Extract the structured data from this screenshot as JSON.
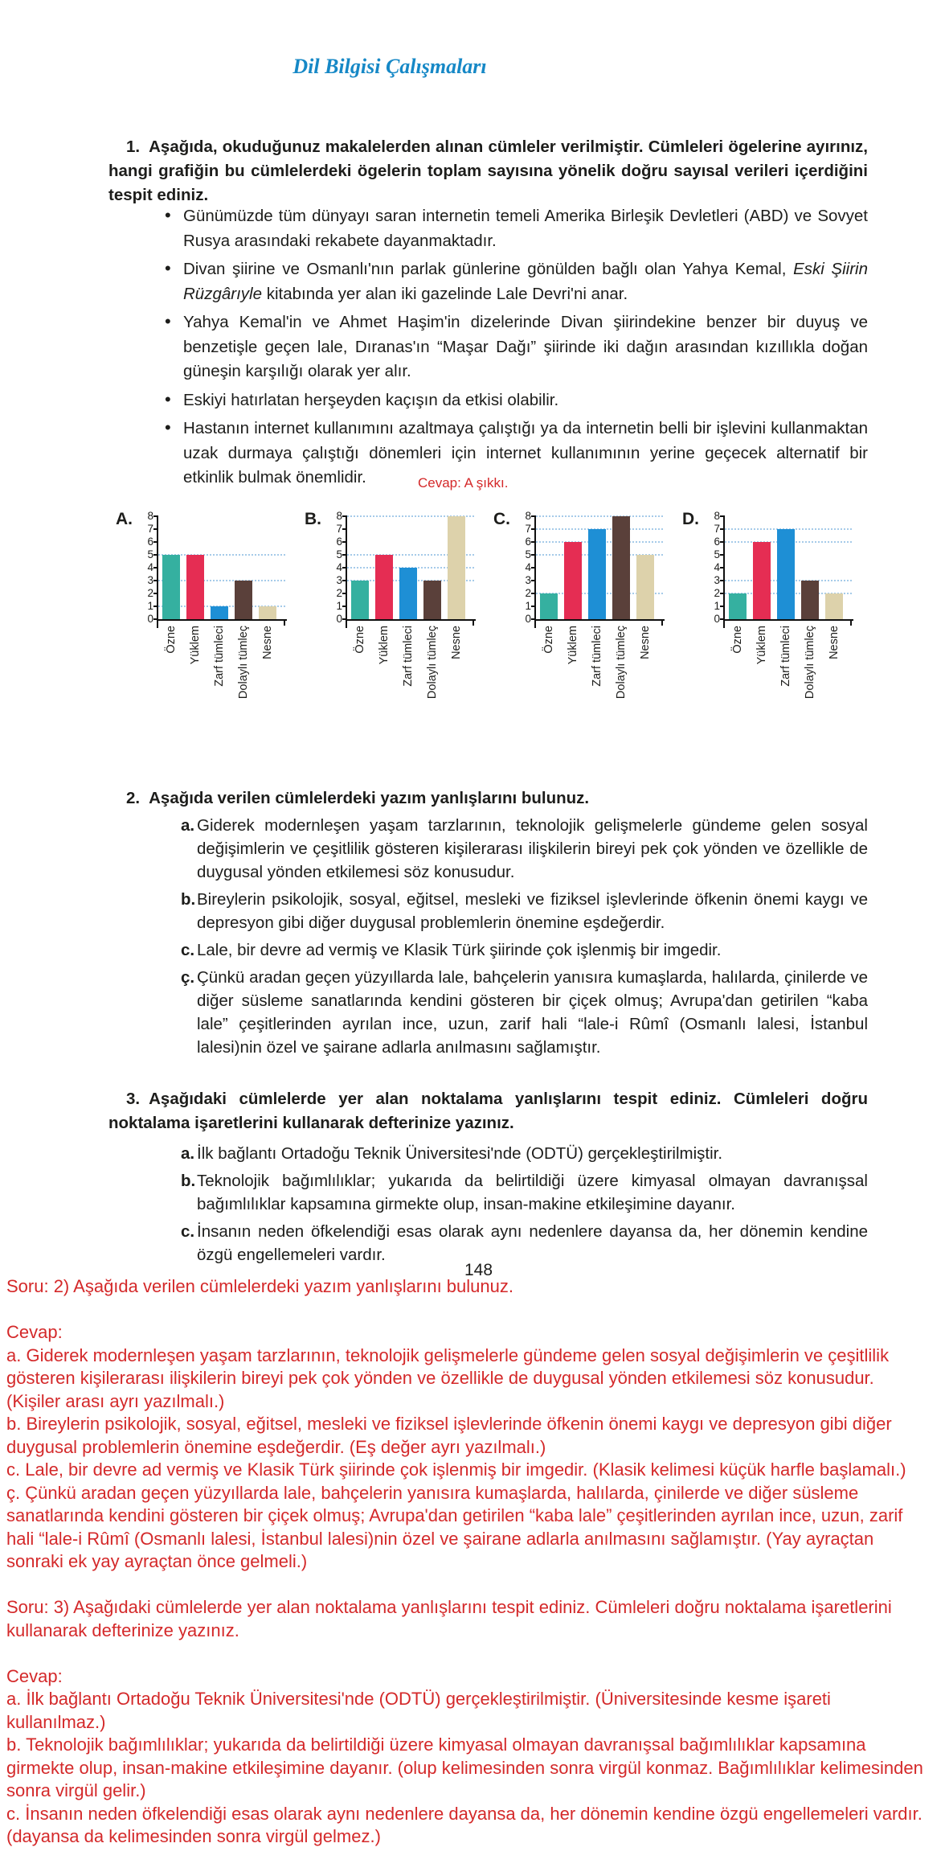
{
  "page": {
    "title": "Dil Bilgisi Çalışmaları",
    "title_color": "#1688c6",
    "page_number": "148"
  },
  "question1": {
    "number": "1.",
    "text": "Aşağıda, okuduğunuz makalelerden alınan cümleler verilmiştir. Cümleleri ögelerine ayırınız, hangi grafiğin bu cümlelerdeki ögelerin toplam sayısına yönelik doğru sayısal verileri içerdiğini tespit ediniz.",
    "bullets": [
      {
        "segments": [
          {
            "text": "Günümüzde tüm dünyayı saran internetin temeli Amerika Birleşik Devletleri (ABD) ve Sovyet Rusya arasındaki rekabete dayanmaktadır."
          }
        ]
      },
      {
        "segments": [
          {
            "text": "Divan şiirine ve Osmanlı'nın parlak günlerine gönülden bağlı olan Yahya Kemal, "
          },
          {
            "text": "Eski Şiirin Rüzgârıyle",
            "italic": true
          },
          {
            "text": " kitabında yer alan iki gazelinde Lale Devri'ni anar."
          }
        ]
      },
      {
        "segments": [
          {
            "text": "Yahya Kemal'in ve Ahmet Haşim'in dizelerinde Divan şiirindekine benzer bir duyuş ve benzetişle geçen lale, Dıranas'ın “Maşar Dağı” şiirinde iki dağın arasından kızıllıkla doğan güneşin karşılığı olarak yer alır."
          }
        ]
      },
      {
        "segments": [
          {
            "text": "Eskiyi hatırlatan herşeyden kaçışın da etkisi olabilir."
          }
        ]
      },
      {
        "segments": [
          {
            "text": "Hastanın internet kullanımını azaltmaya çalıştığı ya da internetin belli bir işlevini kullanmaktan uzak durmaya çalıştığı dönemleri için internet kullanımının yerine geçecek alternatif bir etkinlik bulmak önemlidir."
          }
        ]
      }
    ],
    "answer_note": "Cevap: A şıkkı."
  },
  "chart_style": {
    "bar_colors": [
      "#35b0a0",
      "#e52d53",
      "#1e8fd5",
      "#5a403a",
      "#ddd2ab"
    ],
    "grid_color": "#a6cbe9",
    "axis_color": "#101010",
    "gridlines": "horizontal dotted line at each distinct bar value",
    "x_labels_rotated": "90deg, read bottom to top"
  },
  "chart_data": [
    {
      "type": "bar",
      "label": "A.",
      "categories": [
        "Özne",
        "Yüklem",
        "Zarf tümleci",
        "Dolaylı tümleç",
        "Nesne"
      ],
      "values": [
        5,
        5,
        1,
        3,
        1
      ],
      "ylim": [
        0,
        8
      ],
      "yticks": [
        0,
        1,
        2,
        3,
        4,
        5,
        6,
        7,
        8
      ]
    },
    {
      "type": "bar",
      "label": "B.",
      "categories": [
        "Özne",
        "Yüklem",
        "Zarf tümleci",
        "Dolaylı tümleç",
        "Nesne"
      ],
      "values": [
        3,
        5,
        4,
        3,
        8
      ],
      "ylim": [
        0,
        8
      ],
      "yticks": [
        0,
        1,
        2,
        3,
        4,
        5,
        6,
        7,
        8
      ]
    },
    {
      "type": "bar",
      "label": "C.",
      "categories": [
        "Özne",
        "Yüklem",
        "Zarf tümleci",
        "Dolaylı tümleç",
        "Nesne"
      ],
      "values": [
        2,
        6,
        7,
        8,
        5
      ],
      "ylim": [
        0,
        8
      ],
      "yticks": [
        0,
        1,
        2,
        3,
        4,
        5,
        6,
        7,
        8
      ]
    },
    {
      "type": "bar",
      "label": "D.",
      "categories": [
        "Özne",
        "Yüklem",
        "Zarf tümleci",
        "Dolaylı tümleç",
        "Nesne"
      ],
      "values": [
        2,
        6,
        7,
        3,
        2
      ],
      "ylim": [
        0,
        8
      ],
      "yticks": [
        0,
        1,
        2,
        3,
        4,
        5,
        6,
        7,
        8
      ]
    }
  ],
  "question2": {
    "number": "2.",
    "text": "Aşağıda verilen cümlelerdeki yazım yanlışlarını bulunuz.",
    "items": [
      {
        "letter": "a.",
        "text": "Giderek modernleşen yaşam tarzlarının, teknolojik gelişmelerle gündeme gelen sosyal değişimlerin ve çeşitlilik gösteren kişilerarası ilişkilerin bireyi pek çok yönden ve özellikle de duygusal yönden etkilemesi söz konusudur."
      },
      {
        "letter": "b.",
        "text": "Bireylerin psikolojik, sosyal, eğitsel, mesleki ve fiziksel işlevlerinde öfkenin önemi kaygı ve depresyon gibi diğer duygusal problemlerin önemine eşdeğerdir."
      },
      {
        "letter": "c.",
        "text": "Lale, bir devre ad vermiş ve Klasik Türk şiirinde çok işlenmiş bir imgedir."
      },
      {
        "letter": "ç.",
        "text": "Çünkü aradan geçen yüzyıllarda lale, bahçelerin yanısıra kumaşlarda, halılarda, çinilerde ve diğer süsleme sanatlarında kendini gösteren bir çiçek olmuş; Avrupa'dan getirilen “kaba lale” çeşitlerinden ayrılan ince, uzun, zarif hali “lale-i Rûmî (Osmanlı lalesi, İstanbul lalesi)nin özel ve şairane adlarla anılmasını sağlamıştır."
      }
    ]
  },
  "question3": {
    "number": "3.",
    "text": "Aşağıdaki cümlelerde yer alan noktalama yanlışlarını tespit ediniz. Cümleleri doğru noktalama işaretlerini kullanarak defterinize yazınız.",
    "items": [
      {
        "letter": "a.",
        "text": "İlk bağlantı Ortadoğu Teknik Üniversitesi'nde (ODTÜ) gerçekleştirilmiştir."
      },
      {
        "letter": "b.",
        "text": "Teknolojik bağımlılıklar; yukarıda da belirtildiği üzere kimyasal olmayan davranışsal bağımlılıklar kapsamına girmekte olup, insan-makine etkileşimine dayanır."
      },
      {
        "letter": "c.",
        "text": "İnsanın neden öfkelendiği esas olarak aynı nedenlere dayansa da, her dönemin kendine özgü engellemeleri vardır."
      }
    ]
  },
  "annotations": {
    "color": "#d4292a",
    "paragraphs": [
      {
        "gap_before": false,
        "text": "Soru: 2) Aşağıda verilen cümlelerdeki yazım yanlışlarını bulunuz."
      },
      {
        "gap_before": true,
        "text": "Cevap:"
      },
      {
        "gap_before": false,
        "text": "a. Giderek modernleşen yaşam tarzlarının, teknolojik gelişmelerle gündeme gelen sosyal değişimlerin ve çeşitlilik gösteren kişilerarası ilişkilerin bireyi pek çok yönden ve özellikle de duygusal yönden etkilemesi söz konusudur. (Kişiler arası ayrı yazılmalı.)"
      },
      {
        "gap_before": false,
        "text": "b. Bireylerin psikolojik, sosyal, eğitsel, mesleki ve fiziksel işlevlerinde öfkenin önemi kaygı ve depresyon gibi diğer duygusal problemlerin önemine eşdeğerdir. (Eş değer ayrı yazılmalı.)"
      },
      {
        "gap_before": false,
        "text": "c. Lale, bir devre ad vermiş ve Klasik Türk şiirinde çok işlenmiş bir imgedir. (Klasik kelimesi küçük harfle başlamalı.)"
      },
      {
        "gap_before": false,
        "text": "ç. Çünkü aradan geçen yüzyıllarda lale, bahçelerin yanısıra kumaşlarda, halılarda, çinilerde ve diğer süsleme sanatlarında kendini gösteren bir çiçek olmuş; Avrupa'dan getirilen “kaba lale” çeşitlerinden ayrılan ince, uzun, zarif hali “lale-i Rûmî (Osmanlı lalesi, İstanbul lalesi)nin özel ve şairane adlarla anılmasını sağlamıştır. (Yay ayraçtan sonraki ek yay ayraçtan önce gelmeli.)"
      },
      {
        "gap_before": true,
        "text": "Soru: 3) Aşağıdaki cümlelerde yer alan noktalama yanlışlarını tespit ediniz. Cümleleri doğru noktalama işaretlerini kullanarak defterinize yazınız."
      },
      {
        "gap_before": true,
        "text": "Cevap:"
      },
      {
        "gap_before": false,
        "text": "a. İlk bağlantı Ortadoğu Teknik Üniversitesi'nde (ODTÜ) gerçekleştirilmiştir. (Üniversitesinde kesme işareti kullanılmaz.)"
      },
      {
        "gap_before": false,
        "text": "b. Teknolojik bağımlılıklar; yukarıda da belirtildiği üzere kimyasal olmayan davranışsal bağımlılıklar kapsamına girmekte olup, insan-makine etkileşimine dayanır. (olup kelimesinden sonra virgül konmaz. Bağımlılıklar kelimesinden sonra virgül gelir.)"
      },
      {
        "gap_before": false,
        "text": "c. İnsanın neden öfkelendiği esas olarak aynı nedenlere dayansa da, her dönemin kendine özgü engellemeleri vardır. (dayansa da kelimesinden sonra virgül gelmez.)"
      }
    ]
  }
}
